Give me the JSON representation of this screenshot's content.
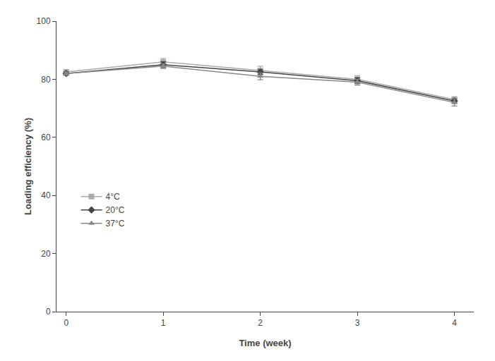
{
  "chart_data": {
    "type": "line",
    "x": [
      0,
      1,
      2,
      3,
      4
    ],
    "series": [
      {
        "name": "4°C",
        "color": "#aaaaaa",
        "marker": "square",
        "line_style": "solid",
        "values": [
          82.5,
          86.0,
          83.0,
          80.0,
          73.0
        ],
        "yerr": [
          0.8,
          1.2,
          1.5,
          1.2,
          1.0
        ]
      },
      {
        "name": "20°C",
        "color": "#444444",
        "marker": "diamond",
        "line_style": "solid",
        "values": [
          82.0,
          85.0,
          82.5,
          79.5,
          72.5
        ],
        "yerr": [
          0.6,
          1.0,
          0.8,
          1.0,
          0.8
        ]
      },
      {
        "name": "37°C",
        "color": "#888888",
        "marker": "triangle-up",
        "line_style": "solid",
        "values": [
          82.0,
          84.5,
          81.0,
          79.0,
          72.0
        ],
        "yerr": [
          0.5,
          0.8,
          1.2,
          1.0,
          1.2
        ]
      }
    ],
    "xlabel": "Time (week)",
    "ylabel": "Loading efficiency (%)",
    "xlim": [
      -0.1,
      4.2
    ],
    "ylim": [
      0,
      100
    ],
    "xticks": [
      0,
      1,
      2,
      3,
      4
    ],
    "yticks": [
      0,
      20,
      40,
      60,
      80,
      100
    ],
    "grid": false,
    "legend": "center left"
  }
}
